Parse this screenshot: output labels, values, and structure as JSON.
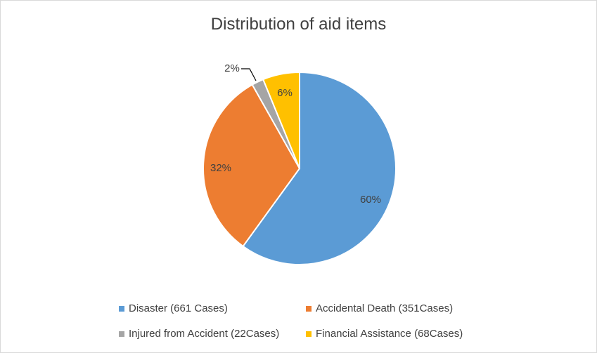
{
  "chart_data": {
    "type": "pie",
    "title": "Distribution of aid items",
    "start_angle_deg": 0,
    "direction": "clockwise",
    "legend_position": "bottom",
    "slices": [
      {
        "label": "Disaster (661 Cases)",
        "value": 661,
        "percent_label": "60%",
        "color": "#5b9bd5"
      },
      {
        "label": "Accidental Death (351Cases)",
        "value": 351,
        "percent_label": "32%",
        "color": "#ed7d31"
      },
      {
        "label": "Injured from Accident (22Cases)",
        "value": 22,
        "percent_label": "2%",
        "color": "#a5a5a5"
      },
      {
        "label": "Financial Assistance (68Cases)",
        "value": 68,
        "percent_label": "6%",
        "color": "#ffc000"
      }
    ]
  }
}
